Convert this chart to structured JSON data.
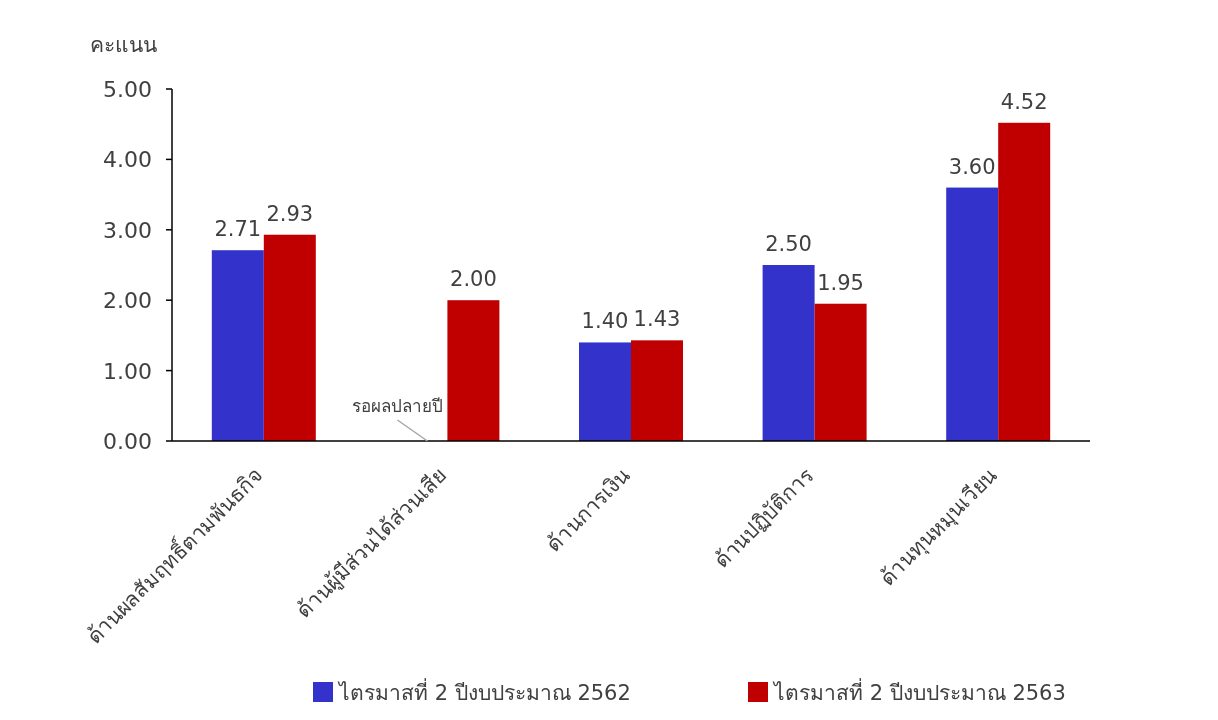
{
  "chart_data": {
    "type": "bar",
    "ylabel": "คะแนน",
    "categories": [
      "ด้านผลสัมฤทธิ์ตามพันธกิจ",
      "ด้านผู้มีส่วนได้ส่วนเสีย",
      "ด้านการเงิน",
      "ด้านปฏิบัติการ",
      "ด้านทุนหมุนเวียน"
    ],
    "series": [
      {
        "name": "ไตรมาสที่ 2 ปีงบประมาณ 2562",
        "color": "#3333cc",
        "values": [
          2.71,
          null,
          1.4,
          2.5,
          3.6
        ],
        "value_labels": [
          "2.71",
          null,
          "1.40",
          "2.50",
          "3.60"
        ]
      },
      {
        "name": "ไตรมาสที่ 2 ปีงบประมาณ 2563",
        "color": "#c00000",
        "values": [
          2.93,
          2.0,
          1.43,
          1.95,
          4.52
        ],
        "value_labels": [
          "2.93",
          "2.00",
          "1.43",
          "1.95",
          "4.52"
        ]
      }
    ],
    "ylim": [
      0,
      5
    ],
    "yticks": [
      {
        "value": 0,
        "label": "0.00"
      },
      {
        "value": 1,
        "label": "1.00"
      },
      {
        "value": 2,
        "label": "2.00"
      },
      {
        "value": 3,
        "label": "3.00"
      },
      {
        "value": 4,
        "label": "4.00"
      },
      {
        "value": 5,
        "label": "5.00"
      }
    ],
    "annotations": [
      {
        "text": "รอผลปลายปี",
        "x": "ด้านผู้มีส่วนได้ส่วนเสีย",
        "y": 0
      }
    ],
    "legend": "bottom",
    "grid": false
  }
}
